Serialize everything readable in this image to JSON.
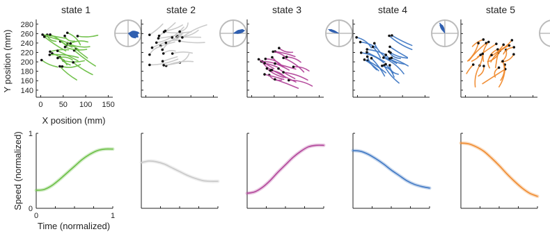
{
  "colors": {
    "axis": "#222222",
    "rose_circle": "#bbbbbb",
    "rose_fill": "#2f5fb0",
    "endpoint": "#111111"
  },
  "labels": {
    "traj_xlabel": "X position (mm)",
    "traj_ylabel": "Y position (mm)",
    "speed_xlabel": "Time (normalized)",
    "speed_ylabel": "Speed (normalized)"
  },
  "traj_axes": {
    "xlim": [
      -10,
      160
    ],
    "ylim": [
      125,
      290
    ],
    "xticks": [
      0,
      50,
      100,
      150
    ],
    "yticks": [
      140,
      160,
      180,
      200,
      220,
      240,
      260,
      280
    ]
  },
  "speed_axes": {
    "xlim": [
      0,
      1
    ],
    "ylim": [
      0,
      1
    ],
    "xticks": [
      0,
      1
    ],
    "yticks": [
      0,
      1
    ]
  },
  "chart_data": [
    {
      "type": "line",
      "panel": "trajectories",
      "title": "state 1",
      "color": "#6bbf45",
      "cluster": {
        "x_range": [
          -5,
          120
        ],
        "y_range": [
          190,
          262
        ],
        "mean_dir_deg": -20,
        "count": 26,
        "spread_deg": 28
      },
      "rose_direction_deg": -10,
      "rose_spread_deg": 80
    },
    {
      "type": "line",
      "panel": "trajectories",
      "title": "state 2",
      "color": "#c8c8c8",
      "cluster": {
        "x_range": [
          5,
          110
        ],
        "y_range": [
          180,
          268
        ],
        "mean_dir_deg": 25,
        "count": 24,
        "spread_deg": 30
      },
      "rose_direction_deg": 15,
      "rose_spread_deg": 40
    },
    {
      "type": "line",
      "panel": "trajectories",
      "title": "state 3",
      "color": "#b2459a",
      "cluster": {
        "x_range": [
          15,
          120
        ],
        "y_range": [
          160,
          240
        ],
        "mean_dir_deg": -30,
        "count": 22,
        "spread_deg": 14
      },
      "rose_direction_deg": 160,
      "rose_spread_deg": 25
    },
    {
      "type": "line",
      "panel": "trajectories",
      "title": "state 4",
      "color": "#3f78c4",
      "cluster": {
        "x_range": [
          -5,
          105
        ],
        "y_range": [
          190,
          262
        ],
        "mean_dir_deg": -40,
        "count": 24,
        "spread_deg": 22
      },
      "rose_direction_deg": 115,
      "rose_spread_deg": 35
    },
    {
      "type": "line",
      "panel": "trajectories",
      "title": "state 5",
      "color": "#f08a2d",
      "cluster": {
        "x_range": [
          15,
          140
        ],
        "y_range": [
          175,
          250
        ],
        "mean_dir_deg": -120,
        "count": 24,
        "spread_deg": 25
      },
      "rose_direction_deg": -80,
      "rose_spread_deg": 20
    },
    {
      "type": "line",
      "panel": "speed",
      "title": "state 1",
      "color": "#6bbf45",
      "x": [
        0,
        0.1,
        0.2,
        0.3,
        0.4,
        0.5,
        0.6,
        0.7,
        0.8,
        0.9,
        1.0
      ],
      "y": [
        0.24,
        0.25,
        0.3,
        0.38,
        0.47,
        0.56,
        0.65,
        0.72,
        0.77,
        0.79,
        0.79
      ]
    },
    {
      "type": "line",
      "panel": "speed",
      "title": "state 2",
      "color": "#c8c8c8",
      "x": [
        0,
        0.1,
        0.2,
        0.3,
        0.4,
        0.5,
        0.6,
        0.7,
        0.8,
        0.9,
        1.0
      ],
      "y": [
        0.61,
        0.63,
        0.62,
        0.59,
        0.54,
        0.49,
        0.44,
        0.4,
        0.37,
        0.36,
        0.36
      ]
    },
    {
      "type": "line",
      "panel": "speed",
      "title": "state 3",
      "color": "#b2459a",
      "x": [
        0,
        0.1,
        0.2,
        0.3,
        0.4,
        0.5,
        0.6,
        0.7,
        0.8,
        0.9,
        1.0
      ],
      "y": [
        0.2,
        0.22,
        0.28,
        0.37,
        0.48,
        0.58,
        0.68,
        0.76,
        0.82,
        0.84,
        0.84
      ]
    },
    {
      "type": "line",
      "panel": "speed",
      "title": "state 4",
      "color": "#3f78c4",
      "x": [
        0,
        0.1,
        0.2,
        0.3,
        0.4,
        0.5,
        0.6,
        0.7,
        0.8,
        0.9,
        1.0
      ],
      "y": [
        0.77,
        0.76,
        0.72,
        0.66,
        0.59,
        0.51,
        0.44,
        0.37,
        0.32,
        0.29,
        0.27
      ]
    },
    {
      "type": "line",
      "panel": "speed",
      "title": "state 5",
      "color": "#f08a2d",
      "x": [
        0,
        0.1,
        0.2,
        0.3,
        0.4,
        0.5,
        0.6,
        0.7,
        0.8,
        0.9,
        1.0
      ],
      "y": [
        0.87,
        0.86,
        0.82,
        0.76,
        0.67,
        0.57,
        0.46,
        0.36,
        0.27,
        0.2,
        0.16
      ]
    }
  ]
}
